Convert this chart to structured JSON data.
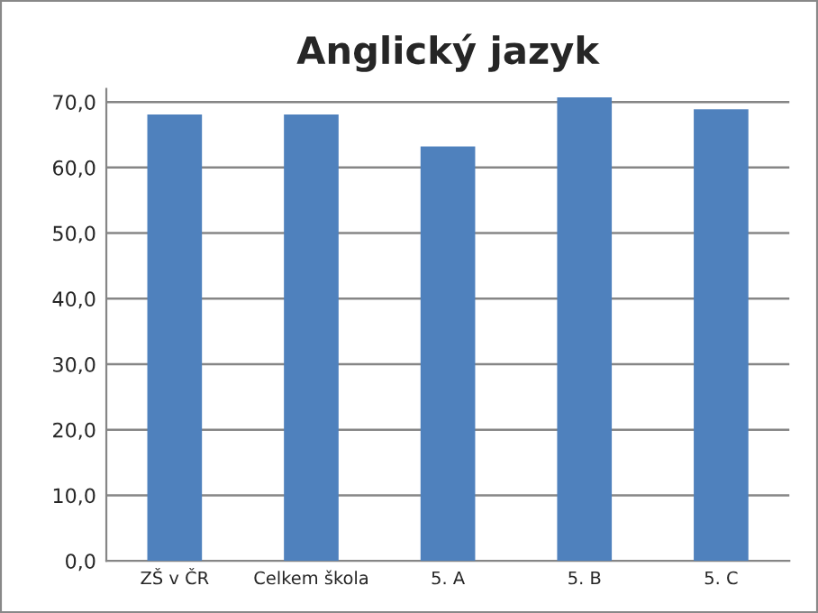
{
  "chart_data": {
    "type": "bar",
    "title": "Anglický jazyk",
    "categories": [
      "ZŠ v ČR",
      "Celkem škola",
      "5. A",
      "5. B",
      "5. C"
    ],
    "values": [
      68.1,
      68.1,
      63.2,
      70.7,
      68.9
    ],
    "color": "#4f81bd",
    "ylim": [
      0,
      72
    ],
    "yticks": [
      {
        "value": 0,
        "label": "0,0"
      },
      {
        "value": 10,
        "label": "10,0"
      },
      {
        "value": 20,
        "label": "20,0"
      },
      {
        "value": 30,
        "label": "30,0"
      },
      {
        "value": 40,
        "label": "40,0"
      },
      {
        "value": 50,
        "label": "50,0"
      },
      {
        "value": 60,
        "label": "60,0"
      },
      {
        "value": 70,
        "label": "70,0"
      }
    ],
    "grid": "y"
  }
}
